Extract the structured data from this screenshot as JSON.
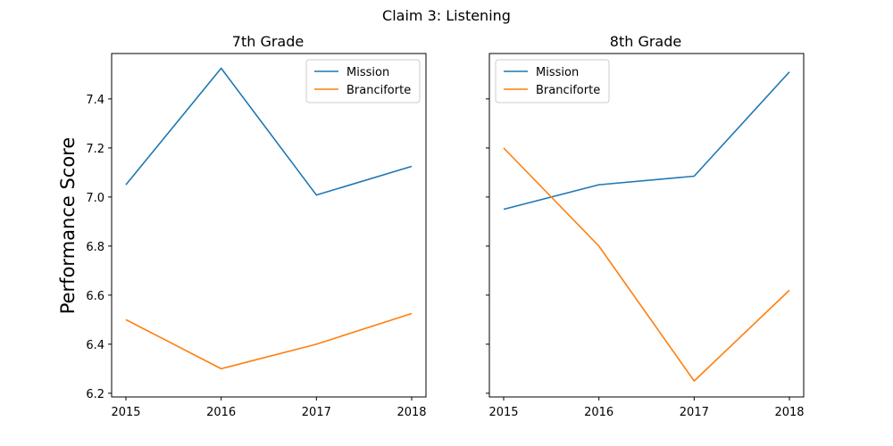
{
  "chart_data": {
    "type": "line",
    "title": "Claim 3: Listening",
    "ylabel": "Performance Score",
    "x": [
      "2015",
      "2016",
      "2017",
      "2018"
    ],
    "ylim": [
      6.185,
      7.585
    ],
    "yticks": [
      "6.2",
      "6.4",
      "6.6",
      "6.8",
      "7.0",
      "7.2",
      "7.4"
    ],
    "legend_placement": [
      "upper right",
      "upper left"
    ],
    "colors": {
      "Mission": "#1f77b4",
      "Branciforte": "#ff7f0e"
    },
    "panels": [
      {
        "title": "7th Grade",
        "series": [
          {
            "name": "Mission",
            "values": [
              7.05,
              7.525,
              7.008,
              7.125
            ]
          },
          {
            "name": "Branciforte",
            "values": [
              6.5,
              6.3,
              6.4,
              6.525
            ]
          }
        ]
      },
      {
        "title": "8th Grade",
        "series": [
          {
            "name": "Mission",
            "values": [
              6.95,
              7.05,
              7.085,
              7.51
            ]
          },
          {
            "name": "Branciforte",
            "values": [
              7.2,
              6.8,
              6.25,
              6.62
            ]
          }
        ]
      }
    ]
  }
}
